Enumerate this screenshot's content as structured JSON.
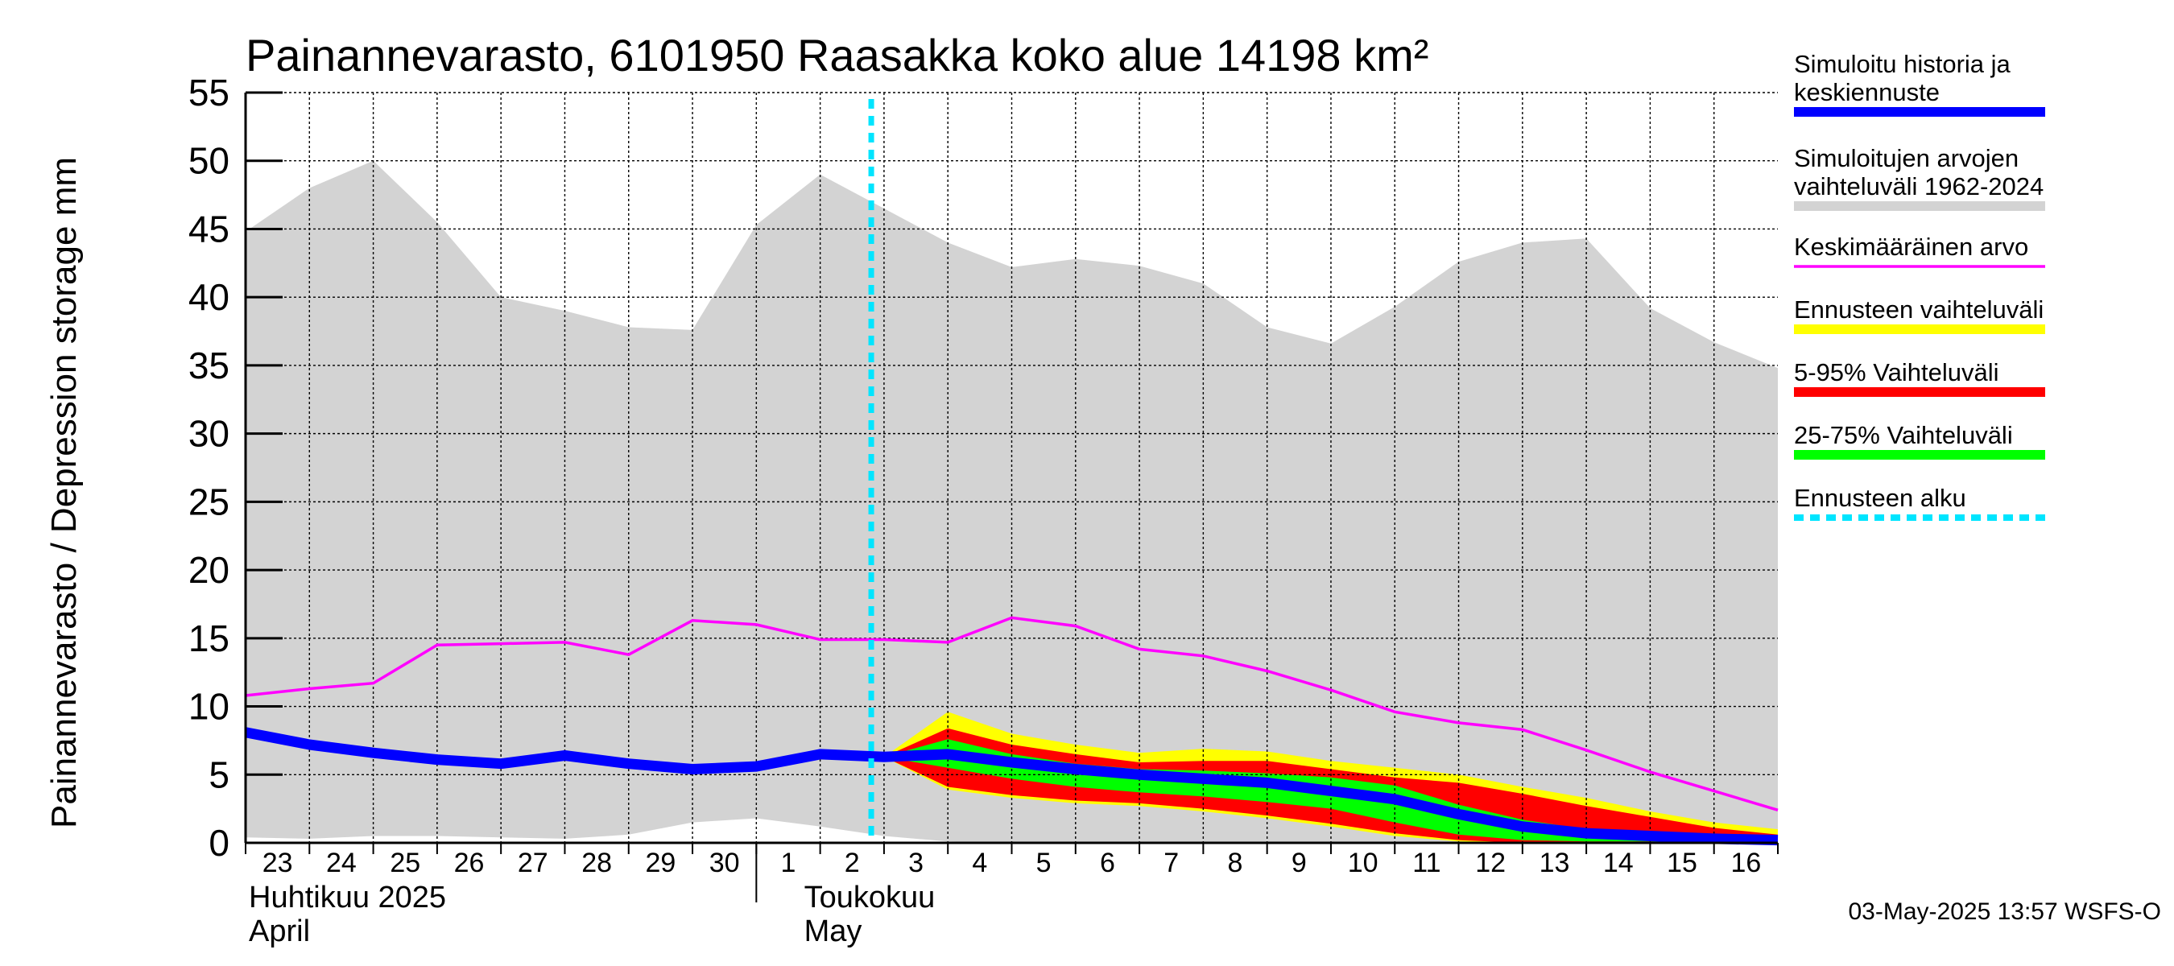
{
  "chart_data": {
    "type": "area",
    "title": "Painannevarasto, 6101950 Raasakka koko alue 14198 km²",
    "ylabel": "Painannevarasto / Depression storage    mm",
    "ylim": [
      0,
      55
    ],
    "yticks": [
      0,
      5,
      10,
      15,
      20,
      25,
      30,
      35,
      40,
      45,
      50,
      55
    ],
    "x_labels": [
      "23",
      "24",
      "25",
      "26",
      "27",
      "28",
      "29",
      "30",
      "1",
      "2",
      "3",
      "4",
      "5",
      "6",
      "7",
      "8",
      "9",
      "10",
      "11",
      "12",
      "13",
      "14",
      "15",
      "16"
    ],
    "months": [
      {
        "line1": "Huhtikuu  2025",
        "line2": "April"
      },
      {
        "line1": "Toukokuu",
        "line2": "May"
      }
    ],
    "forecast_start_index": 9.8,
    "grid": true,
    "legend_position": "right",
    "timestamp": "03-May-2025 13:57 WSFS-O",
    "legend": [
      {
        "label": "Simuloitu historia ja\nkeskiennuste",
        "color": "#0000ff",
        "style": "thick"
      },
      {
        "label": "Simuloitujen arvojen\nvaihteluväli 1962-2024",
        "color": "#d3d3d3",
        "style": "thick"
      },
      {
        "label": "Keskimääräinen arvo",
        "color": "#ff00ff",
        "style": "thin"
      },
      {
        "label": "Ennusteen vaihteluväli",
        "color": "#ffff00",
        "style": "thick"
      },
      {
        "label": "5-95% Vaihteluväli",
        "color": "#ff0000",
        "style": "thick"
      },
      {
        "label": "25-75% Vaihteluväli",
        "color": "#00ff00",
        "style": "thick"
      },
      {
        "label": "Ennusteen alku",
        "color": "#00e5ff",
        "style": "dashed"
      }
    ],
    "history_range": {
      "x": [
        0,
        1,
        2,
        3,
        4,
        5,
        6,
        7,
        8,
        9,
        10,
        11,
        12,
        13,
        14,
        15,
        16,
        17,
        18,
        19,
        20,
        21,
        22,
        23,
        24
      ],
      "upper": [
        44.8,
        48.0,
        50.0,
        45.5,
        40.0,
        39.0,
        37.8,
        37.6,
        45.3,
        49.0,
        46.5,
        44.0,
        42.2,
        42.8,
        42.3,
        41.0,
        37.8,
        36.6,
        39.3,
        42.6,
        44.0,
        44.3,
        39.2,
        36.7,
        34.8
      ],
      "lower": [
        0.4,
        0.3,
        0.5,
        0.5,
        0.4,
        0.3,
        0.6,
        1.5,
        1.8,
        1.2,
        0.5,
        0.1,
        0,
        0,
        0,
        0,
        0,
        0,
        0,
        0,
        0,
        0,
        0,
        0,
        0
      ]
    },
    "mean": {
      "x": [
        0,
        1,
        2,
        3,
        4,
        5,
        6,
        7,
        8,
        9,
        10,
        11,
        12,
        13,
        14,
        15,
        16,
        17,
        18,
        19,
        20,
        21,
        22,
        23,
        24
      ],
      "values": [
        10.8,
        11.3,
        11.7,
        14.5,
        14.6,
        14.7,
        13.8,
        16.3,
        16.0,
        14.9,
        14.9,
        14.7,
        16.5,
        15.9,
        14.2,
        13.7,
        12.6,
        11.2,
        9.6,
        8.8,
        8.3,
        6.8,
        5.2,
        3.8,
        2.4
      ]
    },
    "forecast_range": {
      "x": [
        10,
        11,
        12,
        13,
        14,
        15,
        16,
        17,
        18,
        19,
        20,
        21,
        22,
        23,
        24
      ],
      "upper": [
        6.3,
        9.6,
        8.0,
        7.2,
        6.6,
        6.9,
        6.7,
        6.0,
        5.5,
        5.0,
        4.1,
        3.3,
        2.3,
        1.5,
        1.0
      ],
      "lower": [
        6.3,
        3.9,
        3.3,
        2.9,
        2.7,
        2.3,
        1.8,
        1.2,
        0.5,
        0.1,
        0,
        0,
        0,
        0,
        0
      ]
    },
    "p5_95": {
      "x": [
        10,
        11,
        12,
        13,
        14,
        15,
        16,
        17,
        18,
        19,
        20,
        21,
        22,
        23,
        24
      ],
      "upper": [
        6.3,
        8.4,
        7.2,
        6.5,
        5.9,
        6.0,
        6.0,
        5.4,
        4.8,
        4.4,
        3.6,
        2.7,
        1.9,
        1.1,
        0.6
      ],
      "lower": [
        6.3,
        4.1,
        3.5,
        3.1,
        2.9,
        2.5,
        2.0,
        1.4,
        0.7,
        0.2,
        0,
        0,
        0,
        0,
        0
      ]
    },
    "p25_75": {
      "x": [
        10,
        11,
        12,
        13,
        14,
        15,
        16,
        17,
        18,
        19,
        20,
        21,
        22,
        23,
        24
      ],
      "upper": [
        6.3,
        7.6,
        6.5,
        5.8,
        5.4,
        5.3,
        5.1,
        4.8,
        4.2,
        2.8,
        1.7,
        1.0,
        0.6,
        0.3,
        0.2
      ],
      "lower": [
        6.3,
        5.5,
        4.7,
        4.1,
        3.7,
        3.4,
        3.0,
        2.5,
        1.5,
        0.6,
        0.2,
        0.1,
        0.1,
        0,
        0
      ]
    },
    "simulated": {
      "x": [
        0,
        1,
        2,
        3,
        4,
        5,
        6,
        7,
        8,
        9,
        10,
        11,
        12,
        13,
        14,
        15,
        16,
        17,
        18,
        19,
        20,
        21,
        22,
        23,
        24
      ],
      "values": [
        8.1,
        7.2,
        6.6,
        6.1,
        5.8,
        6.4,
        5.8,
        5.4,
        5.6,
        6.5,
        6.3,
        6.5,
        5.9,
        5.4,
        5.0,
        4.7,
        4.4,
        3.8,
        3.2,
        2.1,
        1.2,
        0.7,
        0.5,
        0.3,
        0.2
      ]
    }
  }
}
